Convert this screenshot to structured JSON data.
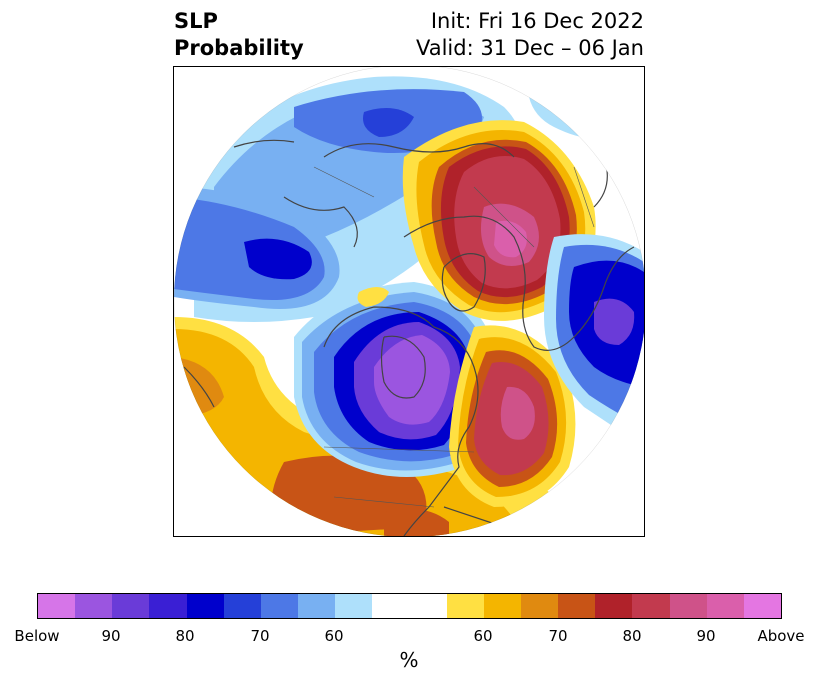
{
  "title": {
    "left_line1": "SLP",
    "left_line2": "Probability",
    "right_line1": "Init: Fri 16 Dec 2022",
    "right_line2": "Valid: 31 Dec – 06 Jan"
  },
  "colorbar": {
    "unit": "%",
    "colors": [
      "#d675e8",
      "#9b55e0",
      "#6a3bd8",
      "#3a1fd4",
      "#0000cc",
      "#2540d8",
      "#4d78e6",
      "#78b0f2",
      "#aee0fb",
      "#ffffff",
      "#ffe042",
      "#f4b500",
      "#e08a10",
      "#c85416",
      "#b0222a",
      "#c23a4e",
      "#cf5289",
      "#da5fab",
      "#e476e2"
    ],
    "ticks": [
      {
        "label": "Below"
      },
      {
        "label": "90"
      },
      {
        "label": "80"
      },
      {
        "label": "70"
      },
      {
        "label": "60"
      },
      {
        "label": "60"
      },
      {
        "label": "70"
      },
      {
        "label": "80"
      },
      {
        "label": "90"
      },
      {
        "label": "Above"
      }
    ]
  },
  "map": {
    "projection": "north-polar-stereographic",
    "palette": {
      "light_blue": "#aee0fb",
      "blue1": "#78b0f2",
      "blue2": "#4d78e6",
      "blue3": "#2540d8",
      "blue4": "#0000cc",
      "blue5": "#3a1fd4",
      "purple1": "#6a3bd8",
      "purple2": "#9b55e0",
      "yellow": "#ffe042",
      "orange1": "#f4b500",
      "orange2": "#e08a10",
      "orange3": "#c85416",
      "red1": "#b0222a",
      "red2": "#c23a4e",
      "pink1": "#cf5289",
      "pink2": "#da5fab"
    }
  }
}
